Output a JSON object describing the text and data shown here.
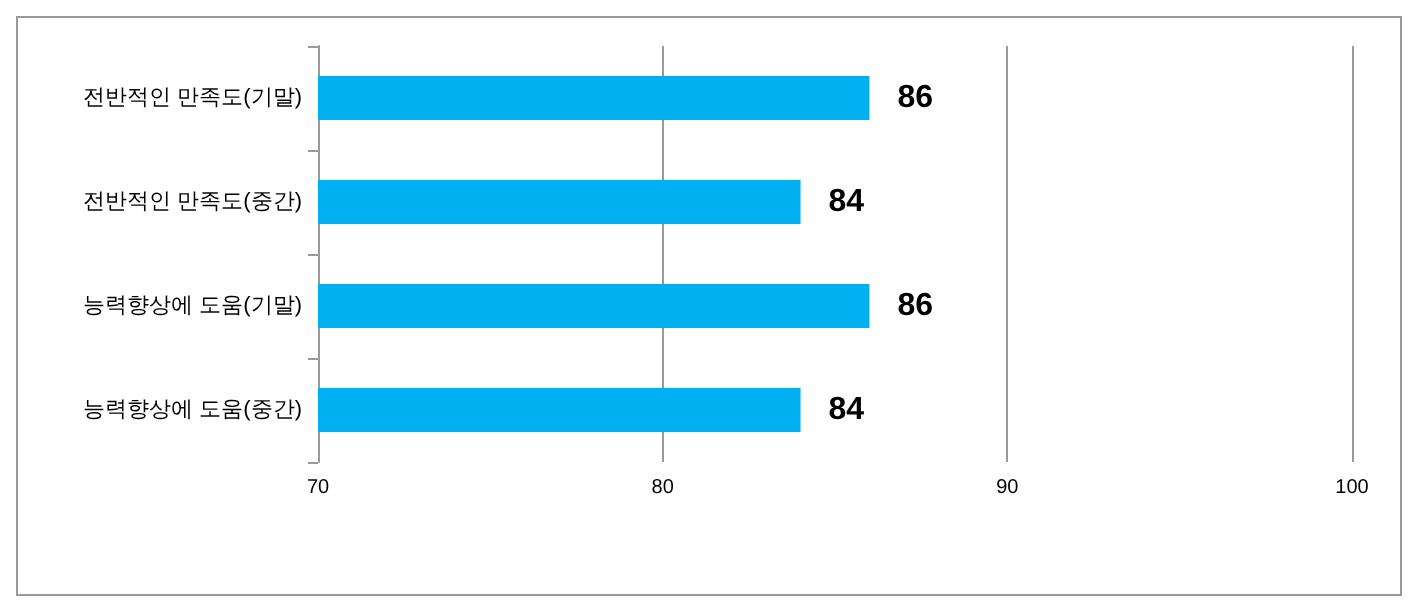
{
  "chart_data": {
    "type": "bar",
    "orientation": "horizontal",
    "categories": [
      "전반적인 만족도(기말)",
      "전반적인 만족도(중간)",
      "능력향상에 도움(기말)",
      "능력향상에 도움(중간)"
    ],
    "values": [
      86,
      84,
      86,
      84
    ],
    "color": "#00b0f0",
    "xlim": [
      70,
      100
    ],
    "xticks": [
      70,
      80,
      90,
      100
    ],
    "grid": "x",
    "data_labels": true
  }
}
